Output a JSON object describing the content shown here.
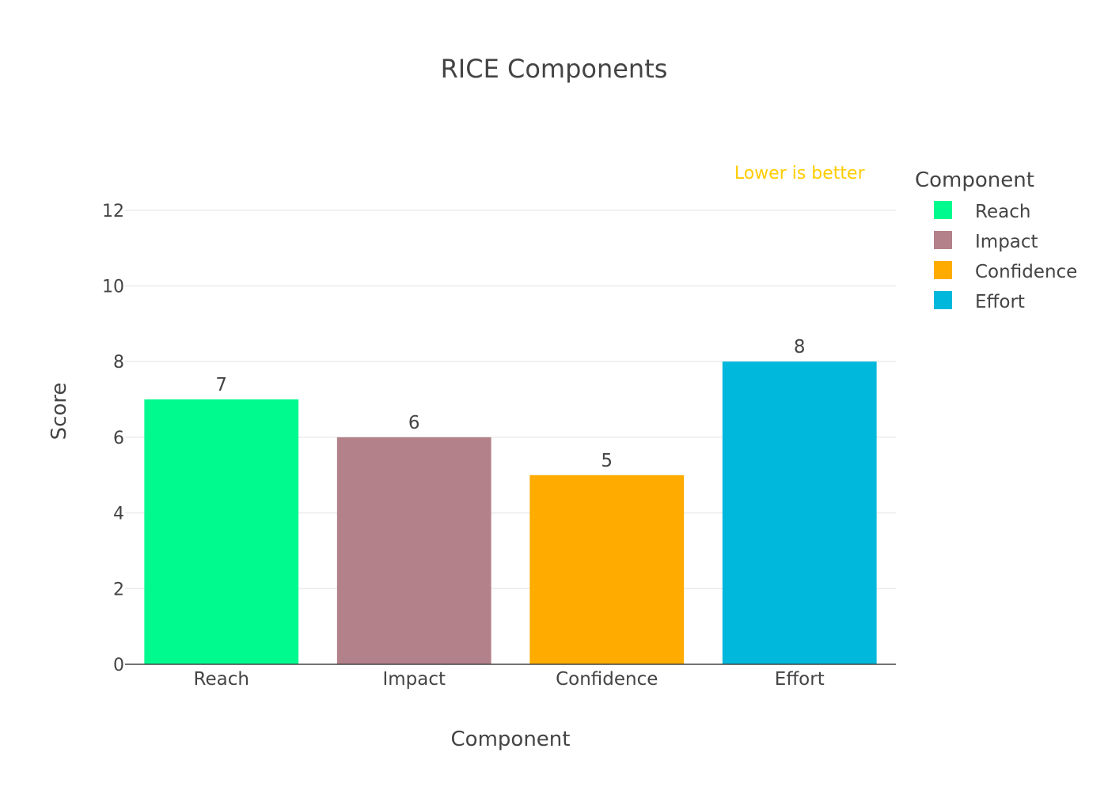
{
  "chart_data": {
    "type": "bar",
    "title": "RICE Components",
    "xlabel": "Component",
    "ylabel": "Score",
    "categories": [
      "Reach",
      "Impact",
      "Confidence",
      "Effort"
    ],
    "values": [
      7,
      6,
      5,
      8
    ],
    "colors": [
      "#00fa8e",
      "#b3818a",
      "#ffab00",
      "#00b8db"
    ],
    "ylim": [
      0,
      13
    ],
    "yticks": [
      0,
      2,
      4,
      6,
      8,
      10,
      12
    ],
    "grid": true,
    "legend": {
      "title": "Component",
      "placement": "right",
      "items": [
        "Reach",
        "Impact",
        "Confidence",
        "Effort"
      ]
    },
    "annotations": [
      {
        "text": "Lower is better",
        "category": "Effort",
        "y": 13,
        "color": "#ffcc00"
      }
    ]
  }
}
